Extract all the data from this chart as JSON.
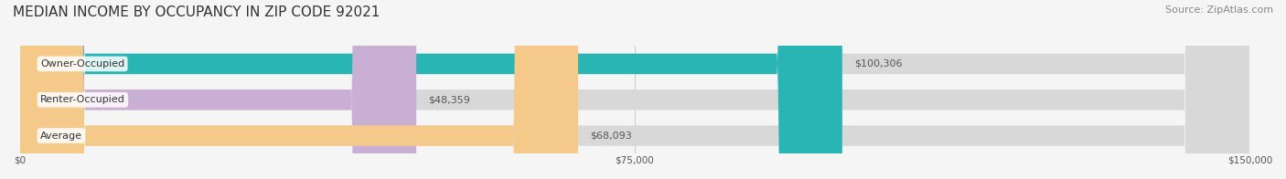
{
  "title": "MEDIAN INCOME BY OCCUPANCY IN ZIP CODE 92021",
  "source": "Source: ZipAtlas.com",
  "categories": [
    "Owner-Occupied",
    "Renter-Occupied",
    "Average"
  ],
  "values": [
    100306,
    48359,
    68093
  ],
  "labels": [
    "$100,306",
    "$48,359",
    "$68,093"
  ],
  "bar_colors": [
    "#2ab5b5",
    "#c9afd4",
    "#f5c98a"
  ],
  "bar_bg_color": "#e8e8e8",
  "xlim": [
    0,
    150000
  ],
  "xticks": [
    0,
    75000,
    150000
  ],
  "xtick_labels": [
    "$0",
    "$75,000",
    "$150,000"
  ],
  "title_fontsize": 11,
  "source_fontsize": 8,
  "label_fontsize": 8,
  "category_fontsize": 8,
  "bar_height": 0.55,
  "fig_bg_color": "#f5f5f5"
}
